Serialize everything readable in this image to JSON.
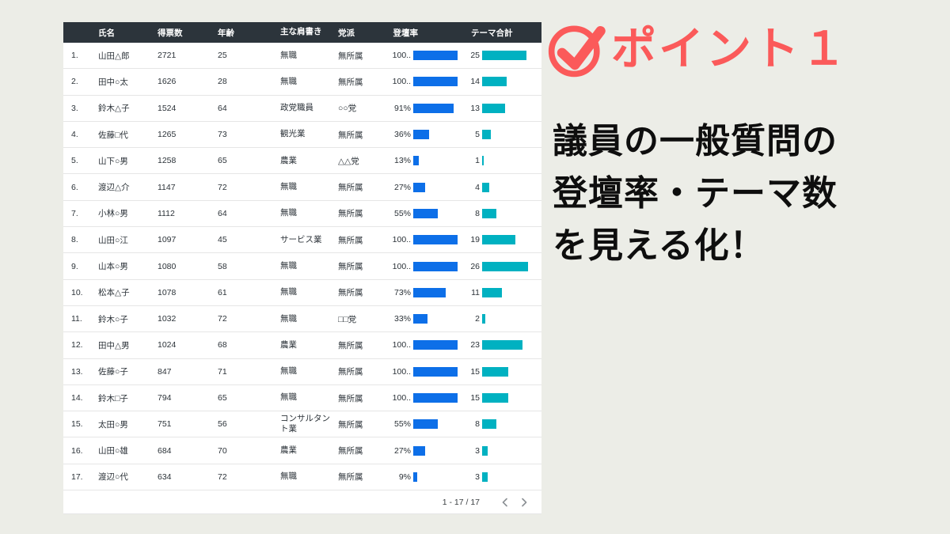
{
  "colors": {
    "page_bg": "#ECEDE7",
    "header_bg": "#2C343B",
    "accent": "#FB5A5A",
    "rate_bar": "#0D6FE8",
    "theme_bar": "#00B1C1"
  },
  "table": {
    "headers": {
      "name": "氏名",
      "votes": "得票数",
      "age": "年齢",
      "title": "主な肩書き",
      "party": "党派",
      "rate": "登壇率",
      "theme": "テーマ合計"
    },
    "rate_max": 100,
    "theme_max": 26,
    "rows": [
      {
        "num": "1.",
        "name": "山田△郎",
        "votes": "2721",
        "age": "25",
        "title": "無職",
        "party": "無所属",
        "rate_label": "100..",
        "rate_pct": 100,
        "theme_label": "25",
        "theme": 25
      },
      {
        "num": "2.",
        "name": "田中○太",
        "votes": "1626",
        "age": "28",
        "title": "無職",
        "party": "無所属",
        "rate_label": "100..",
        "rate_pct": 100,
        "theme_label": "14",
        "theme": 14
      },
      {
        "num": "3.",
        "name": "鈴木△子",
        "votes": "1524",
        "age": "64",
        "title": "政党職員",
        "party": "○○党",
        "rate_label": "91%",
        "rate_pct": 91,
        "theme_label": "13",
        "theme": 13
      },
      {
        "num": "4.",
        "name": "佐藤□代",
        "votes": "1265",
        "age": "73",
        "title": "観光業",
        "party": "無所属",
        "rate_label": "36%",
        "rate_pct": 36,
        "theme_label": "5",
        "theme": 5
      },
      {
        "num": "5.",
        "name": "山下○男",
        "votes": "1258",
        "age": "65",
        "title": "農業",
        "party": "△△党",
        "rate_label": "13%",
        "rate_pct": 13,
        "theme_label": "1",
        "theme": 1
      },
      {
        "num": "6.",
        "name": "渡辺△介",
        "votes": "1147",
        "age": "72",
        "title": "無職",
        "party": "無所属",
        "rate_label": "27%",
        "rate_pct": 27,
        "theme_label": "4",
        "theme": 4
      },
      {
        "num": "7.",
        "name": "小林○男",
        "votes": "1112",
        "age": "64",
        "title": "無職",
        "party": "無所属",
        "rate_label": "55%",
        "rate_pct": 55,
        "theme_label": "8",
        "theme": 8
      },
      {
        "num": "8.",
        "name": "山田○江",
        "votes": "1097",
        "age": "45",
        "title": "サービス業",
        "party": "無所属",
        "rate_label": "100..",
        "rate_pct": 100,
        "theme_label": "19",
        "theme": 19
      },
      {
        "num": "9.",
        "name": "山本○男",
        "votes": "1080",
        "age": "58",
        "title": "無職",
        "party": "無所属",
        "rate_label": "100..",
        "rate_pct": 100,
        "theme_label": "26",
        "theme": 26
      },
      {
        "num": "10.",
        "name": "松本△子",
        "votes": "1078",
        "age": "61",
        "title": "無職",
        "party": "無所属",
        "rate_label": "73%",
        "rate_pct": 73,
        "theme_label": "11",
        "theme": 11
      },
      {
        "num": "11.",
        "name": "鈴木○子",
        "votes": "1032",
        "age": "72",
        "title": "無職",
        "party": "□□党",
        "rate_label": "33%",
        "rate_pct": 33,
        "theme_label": "2",
        "theme": 2
      },
      {
        "num": "12.",
        "name": "田中△男",
        "votes": "1024",
        "age": "68",
        "title": "農業",
        "party": "無所属",
        "rate_label": "100..",
        "rate_pct": 100,
        "theme_label": "23",
        "theme": 23
      },
      {
        "num": "13.",
        "name": "佐藤○子",
        "votes": "847",
        "age": "71",
        "title": "無職",
        "party": "無所属",
        "rate_label": "100..",
        "rate_pct": 100,
        "theme_label": "15",
        "theme": 15
      },
      {
        "num": "14.",
        "name": "鈴木□子",
        "votes": "794",
        "age": "65",
        "title": "無職",
        "party": "無所属",
        "rate_label": "100..",
        "rate_pct": 100,
        "theme_label": "15",
        "theme": 15
      },
      {
        "num": "15.",
        "name": "太田○男",
        "votes": "751",
        "age": "56",
        "title": "コンサルタント業",
        "party": "無所属",
        "rate_label": "55%",
        "rate_pct": 55,
        "theme_label": "8",
        "theme": 8
      },
      {
        "num": "16.",
        "name": "山田○雄",
        "votes": "684",
        "age": "70",
        "title": "農業",
        "party": "無所属",
        "rate_label": "27%",
        "rate_pct": 27,
        "theme_label": "3",
        "theme": 3
      },
      {
        "num": "17.",
        "name": "渡辺○代",
        "votes": "634",
        "age": "72",
        "title": "無職",
        "party": "無所属",
        "rate_label": "9%",
        "rate_pct": 9,
        "theme_label": "3",
        "theme": 3
      }
    ],
    "footer": {
      "range_label": "1 - 17 / 17"
    }
  },
  "panel": {
    "heading": "ポイント１",
    "body_line1": "議員の一般質問の",
    "body_line2": "登壇率・テーマ数",
    "body_line3": "を見える化！"
  }
}
